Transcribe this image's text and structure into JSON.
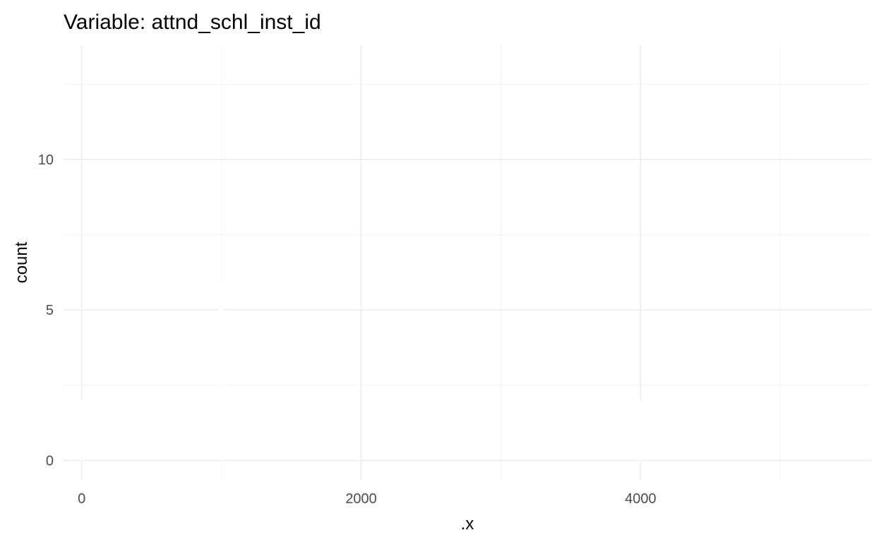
{
  "chart_data": {
    "type": "bar",
    "title": "Variable: attnd_schl_inst_id",
    "xlabel": ".x",
    "ylabel": "count",
    "xlim": [
      -130,
      5650
    ],
    "ylim": [
      -0.65,
      13.8
    ],
    "x_major_ticks": [
      0,
      2000,
      4000
    ],
    "x_tick_labels": [
      "0",
      "2000",
      "4000"
    ],
    "x_minor_ticks": [
      1000,
      3000,
      5000
    ],
    "y_major_ticks": [
      0,
      5,
      10
    ],
    "y_tick_labels": [
      "0",
      "5",
      "10"
    ],
    "y_minor_ticks": [
      2.5,
      7.5,
      12.5
    ],
    "grid": true,
    "legend": "none",
    "bar_fill": "#ffffff",
    "series": [
      {
        "bars": [
          {
            "x": 0,
            "count": 2
          },
          {
            "x": 1000,
            "count": 6
          },
          {
            "x": 4000,
            "count": 2
          }
        ]
      }
    ]
  }
}
